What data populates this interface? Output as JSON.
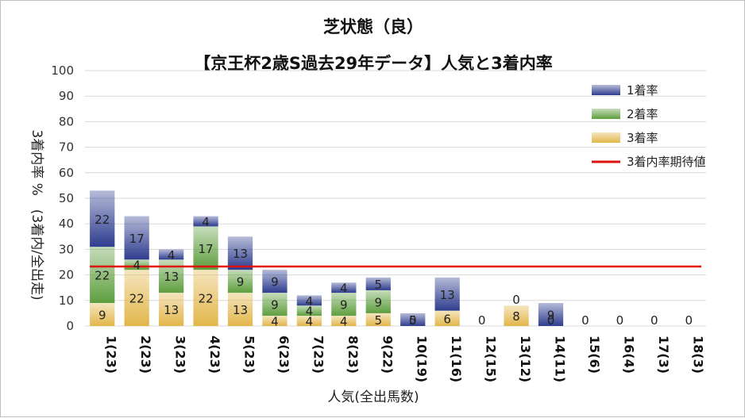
{
  "chart_data": {
    "type": "bar",
    "stacked": true,
    "title": "芝状態（良）",
    "subtitle": "【京王杯2歳S過去29年データ】人気と3着内率",
    "xlabel": "人気(全出馬数)",
    "ylabel": "3着内率 %　(3着内/全出走)",
    "ylim": [
      0,
      100
    ],
    "yticks": [
      0,
      10,
      20,
      30,
      40,
      50,
      60,
      70,
      80,
      90,
      100
    ],
    "grid": true,
    "legend_position": "top-right",
    "categories": [
      "1(23)",
      "2(23)",
      "3(23)",
      "4(23)",
      "5(23)",
      "6(23)",
      "7(23)",
      "8(23)",
      "9(22)",
      "10(19)",
      "11(16)",
      "12(15)",
      "13(12)",
      "14(11)",
      "15(6)",
      "16(4)",
      "17(3)",
      "18(3)"
    ],
    "series": [
      {
        "name": "3着率",
        "color": "#e2b64a",
        "values": [
          9,
          22,
          13,
          22,
          13,
          4,
          4,
          4,
          5,
          0,
          6,
          0,
          8,
          0,
          0,
          0,
          0,
          0
        ],
        "labels": [
          "9",
          "22",
          "13",
          "22",
          "13",
          "4",
          "4",
          "4",
          "5",
          "0",
          "6",
          "0",
          "8",
          "0",
          "0",
          "0",
          "0",
          "0"
        ]
      },
      {
        "name": "2着率",
        "color": "#5e9e3e",
        "values": [
          22,
          4,
          13,
          17,
          9,
          9,
          4,
          9,
          9,
          0,
          0,
          0,
          0,
          0,
          0,
          0,
          0,
          0
        ],
        "labels": [
          "22",
          "4",
          "13",
          "17",
          "9",
          "9",
          "4",
          "9",
          "9",
          "",
          "",
          "",
          "0",
          "",
          "",
          "",
          "",
          ""
        ]
      },
      {
        "name": "1着率",
        "color": "#2e3d8f",
        "values": [
          22,
          17,
          4,
          4,
          13,
          9,
          4,
          4,
          5,
          5,
          13,
          0,
          0,
          9,
          0,
          0,
          0,
          0
        ],
        "labels": [
          "22",
          "17",
          "4",
          "4",
          "13",
          "9",
          "4",
          "4",
          "5",
          "5",
          "13",
          "",
          "",
          "9",
          "",
          "",
          "",
          ""
        ]
      }
    ],
    "reference_line": {
      "name": "3着内率期待値",
      "value": 23.3,
      "color": "#e01010"
    }
  }
}
